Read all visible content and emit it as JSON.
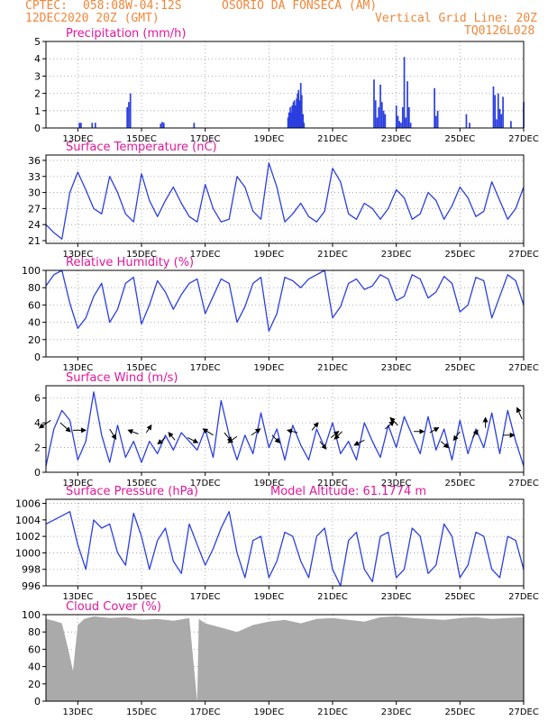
{
  "header": {
    "source": "CPTEC:",
    "coords": "058:08W-04:12S",
    "station": "OSORIO DA FONSECA (AM)",
    "datetime": "12DEC2020 20Z (GMT)",
    "grid_note": "Vertical Grid Line: 20Z",
    "model_code": "TQ0126L028"
  },
  "colors": {
    "header": "#f0873a",
    "title": "#e0189a",
    "line": "#2b3fe0",
    "cloud": "#aaaaaa",
    "grid": "#9a9a9a"
  },
  "x_ticks": [
    "13DEC",
    "15DEC",
    "17DEC",
    "19DEC",
    "21DEC",
    "23DEC",
    "25DEC",
    "27DEC"
  ],
  "chart_data": [
    {
      "type": "bar",
      "title": "Precipitation (mm/h)",
      "ylim": [
        0,
        5
      ],
      "yticks": [
        0,
        1,
        2,
        3,
        4,
        5
      ],
      "x_unit": "days since 12DEC2020 12Z",
      "bars": [
        [
          1.05,
          0.3
        ],
        [
          1.1,
          0.3
        ],
        [
          1.45,
          0.3
        ],
        [
          1.55,
          0.3
        ],
        [
          2.55,
          1.2
        ],
        [
          2.6,
          1.5
        ],
        [
          2.65,
          2.0
        ],
        [
          3.6,
          0.25
        ],
        [
          3.65,
          0.35
        ],
        [
          3.7,
          0.3
        ],
        [
          4.65,
          0.3
        ],
        [
          7.6,
          0.6
        ],
        [
          7.63,
          0.9
        ],
        [
          7.67,
          1.2
        ],
        [
          7.7,
          0.9
        ],
        [
          7.73,
          1.3
        ],
        [
          7.77,
          1.5
        ],
        [
          7.8,
          1.6
        ],
        [
          7.83,
          1.3
        ],
        [
          7.87,
          1.7
        ],
        [
          7.9,
          2.0
        ],
        [
          7.93,
          2.2
        ],
        [
          7.97,
          1.6
        ],
        [
          8.0,
          2.6
        ],
        [
          8.03,
          1.9
        ],
        [
          8.07,
          0.8
        ],
        [
          8.1,
          0.3
        ],
        [
          10.3,
          2.8
        ],
        [
          10.35,
          1.6
        ],
        [
          10.4,
          0.6
        ],
        [
          10.45,
          1.2
        ],
        [
          10.5,
          2.5
        ],
        [
          10.55,
          1.5
        ],
        [
          10.6,
          1.0
        ],
        [
          10.65,
          0.8
        ],
        [
          11.0,
          1.3
        ],
        [
          11.05,
          0.7
        ],
        [
          11.1,
          0.4
        ],
        [
          11.15,
          0.3
        ],
        [
          11.2,
          1.2
        ],
        [
          11.25,
          4.1
        ],
        [
          11.3,
          0.6
        ],
        [
          11.35,
          2.7
        ],
        [
          11.4,
          1.2
        ],
        [
          11.45,
          0.3
        ],
        [
          12.2,
          2.3
        ],
        [
          12.25,
          0.7
        ],
        [
          12.3,
          1.0
        ],
        [
          13.2,
          0.8
        ],
        [
          13.3,
          0.3
        ],
        [
          14.05,
          2.4
        ],
        [
          14.1,
          1.9
        ],
        [
          14.15,
          0.5
        ],
        [
          14.2,
          2.0
        ],
        [
          14.25,
          1.1
        ],
        [
          14.3,
          0.8
        ],
        [
          14.35,
          1.8
        ],
        [
          14.6,
          0.4
        ],
        [
          15.0,
          1.5
        ]
      ]
    },
    {
      "type": "line",
      "title": "Surface Temperature (nC)",
      "ylim": [
        20.5,
        37
      ],
      "yticks": [
        21,
        24,
        27,
        30,
        33,
        36
      ],
      "x": [
        0,
        0.25,
        0.5,
        0.75,
        1,
        1.25,
        1.5,
        1.75,
        2,
        2.25,
        2.5,
        2.75,
        3,
        3.25,
        3.5,
        3.75,
        4,
        4.25,
        4.5,
        4.75,
        5,
        5.25,
        5.5,
        5.75,
        6,
        6.25,
        6.5,
        6.75,
        7,
        7.25,
        7.5,
        7.75,
        8,
        8.25,
        8.5,
        8.75,
        9,
        9.25,
        9.5,
        9.75,
        10,
        10.25,
        10.5,
        10.75,
        11,
        11.25,
        11.5,
        11.75,
        12,
        12.25,
        12.5,
        12.75,
        13,
        13.25,
        13.5,
        13.75,
        14,
        14.25,
        14.5,
        14.75,
        15
      ],
      "values": [
        24,
        22.5,
        21.3,
        30,
        33.8,
        30.5,
        27,
        26,
        33,
        30,
        26,
        24.5,
        33.5,
        28.5,
        25.5,
        28.5,
        31,
        28,
        25.5,
        24.5,
        31.5,
        27,
        24.5,
        25,
        33,
        31,
        26.5,
        25,
        35.5,
        31,
        24.5,
        26,
        28,
        25.5,
        24.5,
        26.5,
        34.5,
        32,
        26,
        25,
        28,
        27,
        25,
        27,
        30.5,
        29,
        25,
        26,
        30,
        28.5,
        25,
        27.5,
        31,
        29,
        25.5,
        26.5,
        32,
        28.5,
        25,
        27,
        31
      ]
    },
    {
      "type": "line",
      "title": "Relative Humidity (%)",
      "ylim": [
        0,
        100
      ],
      "yticks": [
        0,
        20,
        40,
        60,
        80,
        100
      ],
      "x": [
        0,
        0.25,
        0.5,
        0.75,
        1,
        1.25,
        1.5,
        1.75,
        2,
        2.25,
        2.5,
        2.75,
        3,
        3.25,
        3.5,
        3.75,
        4,
        4.25,
        4.5,
        4.75,
        5,
        5.25,
        5.5,
        5.75,
        6,
        6.25,
        6.5,
        6.75,
        7,
        7.25,
        7.5,
        7.75,
        8,
        8.25,
        8.5,
        8.75,
        9,
        9.25,
        9.5,
        9.75,
        10,
        10.25,
        10.5,
        10.75,
        11,
        11.25,
        11.5,
        11.75,
        12,
        12.25,
        12.5,
        12.75,
        13,
        13.25,
        13.5,
        13.75,
        14,
        14.25,
        14.5,
        14.75,
        15
      ],
      "values": [
        82,
        95,
        100,
        62,
        33,
        45,
        70,
        85,
        40,
        55,
        85,
        92,
        38,
        60,
        88,
        75,
        55,
        72,
        85,
        90,
        50,
        70,
        90,
        85,
        40,
        58,
        85,
        92,
        30,
        50,
        92,
        88,
        80,
        90,
        95,
        100,
        45,
        58,
        85,
        90,
        78,
        82,
        95,
        90,
        65,
        70,
        95,
        90,
        68,
        75,
        93,
        85,
        52,
        60,
        92,
        88,
        45,
        70,
        95,
        88,
        60
      ]
    },
    {
      "type": "line",
      "title": "Surface Wind (m/s)",
      "ylim": [
        0,
        7
      ],
      "yticks": [
        0,
        2,
        4,
        6
      ],
      "x": [
        0,
        0.25,
        0.5,
        0.75,
        1,
        1.25,
        1.5,
        1.75,
        2,
        2.25,
        2.5,
        2.75,
        3,
        3.25,
        3.5,
        3.75,
        4,
        4.25,
        4.5,
        4.75,
        5,
        5.25,
        5.5,
        5.75,
        6,
        6.25,
        6.5,
        6.75,
        7,
        7.25,
        7.5,
        7.75,
        8,
        8.25,
        8.5,
        8.75,
        9,
        9.25,
        9.5,
        9.75,
        10,
        10.25,
        10.5,
        10.75,
        11,
        11.25,
        11.5,
        11.75,
        12,
        12.25,
        12.5,
        12.75,
        13,
        13.25,
        13.5,
        13.75,
        14,
        14.25,
        14.5,
        14.75,
        15
      ],
      "values": [
        0.5,
        3.5,
        5.0,
        4.2,
        1.0,
        2.5,
        6.5,
        3.0,
        0.8,
        3.8,
        1.2,
        2.5,
        0.8,
        2.5,
        1.5,
        3.0,
        1.8,
        3.2,
        2.5,
        1.8,
        3.5,
        1.2,
        5.8,
        3.0,
        1.0,
        3.0,
        1.5,
        4.8,
        2.0,
        3.5,
        1.0,
        3.8,
        2.2,
        1.0,
        3.5,
        2.0,
        4.0,
        1.5,
        2.5,
        1.0,
        4.0,
        2.5,
        1.2,
        3.8,
        2.0,
        4.5,
        3.0,
        1.5,
        4.5,
        1.8,
        3.5,
        1.0,
        4.2,
        1.5,
        3.5,
        2.0,
        4.8,
        1.5,
        5.0,
        2.5,
        0.5
      ],
      "arrows": [
        [
          0.15,
          4.2,
          -0.9,
          -0.6
        ],
        [
          0.45,
          4.0,
          0.8,
          -0.7
        ],
        [
          0.85,
          3.4,
          1.0,
          0.0
        ],
        [
          2.0,
          3.5,
          0.5,
          -0.8
        ],
        [
          2.9,
          3.1,
          -0.8,
          0.3
        ],
        [
          3.15,
          3.2,
          0.4,
          0.6
        ],
        [
          3.75,
          2.8,
          -0.6,
          -0.5
        ],
        [
          4.05,
          2.6,
          -0.5,
          0.6
        ],
        [
          4.45,
          2.8,
          0.8,
          -0.4
        ],
        [
          5.25,
          3.0,
          -0.8,
          0.5
        ],
        [
          5.6,
          3.2,
          0.6,
          -0.7
        ],
        [
          6.0,
          2.9,
          -0.7,
          -0.5
        ],
        [
          6.45,
          3.0,
          0.7,
          0.5
        ],
        [
          7.1,
          3.0,
          0.6,
          -0.6
        ],
        [
          7.9,
          3.2,
          -0.8,
          0.2
        ],
        [
          8.35,
          3.4,
          0.5,
          0.6
        ],
        [
          8.6,
          2.5,
          0.5,
          -0.6
        ],
        [
          8.95,
          2.8,
          0.6,
          0.5
        ],
        [
          9.3,
          3.3,
          -0.6,
          -0.6
        ],
        [
          10.0,
          2.6,
          -0.8,
          -0.4
        ],
        [
          10.65,
          3.5,
          0.7,
          0.6
        ],
        [
          11.05,
          3.8,
          -0.6,
          0.6
        ],
        [
          11.55,
          3.3,
          0.8,
          0.0
        ],
        [
          12.05,
          3.2,
          0.7,
          0.4
        ],
        [
          12.4,
          2.5,
          0.6,
          -0.5
        ],
        [
          13.0,
          3.3,
          -0.5,
          -0.7
        ],
        [
          13.4,
          2.8,
          0.4,
          0.6
        ],
        [
          13.8,
          3.6,
          0.0,
          0.8
        ],
        [
          14.35,
          3.0,
          0.9,
          0.0
        ],
        [
          14.95,
          4.3,
          -0.4,
          0.9
        ]
      ]
    },
    {
      "type": "line",
      "title": "Surface Pressure (hPa)",
      "annotation": "Model Altitude: 61.1774 m",
      "ylim": [
        996,
        1006.5
      ],
      "yticks": [
        996,
        998,
        1000,
        1002,
        1004,
        1006
      ],
      "x": [
        0,
        0.25,
        0.5,
        0.75,
        1,
        1.25,
        1.5,
        1.75,
        2,
        2.25,
        2.5,
        2.75,
        3,
        3.25,
        3.5,
        3.75,
        4,
        4.25,
        4.5,
        4.75,
        5,
        5.25,
        5.5,
        5.75,
        6,
        6.25,
        6.5,
        6.75,
        7,
        7.25,
        7.5,
        7.75,
        8,
        8.25,
        8.5,
        8.75,
        9,
        9.25,
        9.5,
        9.75,
        10,
        10.25,
        10.5,
        10.75,
        11,
        11.25,
        11.5,
        11.75,
        12,
        12.25,
        12.5,
        12.75,
        13,
        13.25,
        13.5,
        13.75,
        14,
        14.25,
        14.5,
        14.75,
        15
      ],
      "values": [
        1003.5,
        1004,
        1004.5,
        1005,
        1001,
        998,
        1004,
        1003,
        1003.5,
        1000,
        998.5,
        1004.8,
        1002,
        998,
        1001.5,
        1003,
        999,
        997.5,
        1003.5,
        1001,
        998.5,
        1000.5,
        1003,
        1005,
        1000,
        997,
        1001.5,
        1002,
        997,
        999,
        1002.5,
        1002,
        999,
        997,
        1002,
        1003,
        998,
        996,
        1001.5,
        1002.5,
        998,
        996.5,
        1002,
        1002.5,
        997,
        998,
        1003,
        1002,
        997.5,
        998.5,
        1003.5,
        1002,
        997,
        998.5,
        1002.5,
        1002,
        998,
        997,
        1002,
        1001.5,
        998
      ]
    },
    {
      "type": "area",
      "title": "Cloud Cover (%)",
      "ylim": [
        0,
        100
      ],
      "yticks": [
        0,
        20,
        40,
        60,
        80,
        100
      ],
      "x": [
        0,
        0.25,
        0.5,
        0.7,
        0.85,
        1.0,
        1.2,
        1.5,
        2.0,
        2.5,
        3.0,
        3.5,
        4.0,
        4.5,
        4.75,
        4.8,
        5.0,
        5.5,
        6.0,
        6.5,
        7.0,
        7.5,
        8.0,
        8.5,
        9.0,
        9.5,
        10.0,
        10.5,
        11.0,
        11.5,
        12.0,
        12.5,
        13.0,
        13.5,
        14.0,
        14.5,
        15.0
      ],
      "values": [
        95,
        93,
        90,
        60,
        35,
        88,
        95,
        98,
        96,
        97,
        94,
        95,
        93,
        96,
        0,
        95,
        90,
        85,
        80,
        88,
        92,
        94,
        90,
        95,
        96,
        94,
        92,
        97,
        98,
        96,
        95,
        94,
        96,
        97,
        95,
        96,
        97
      ]
    }
  ]
}
